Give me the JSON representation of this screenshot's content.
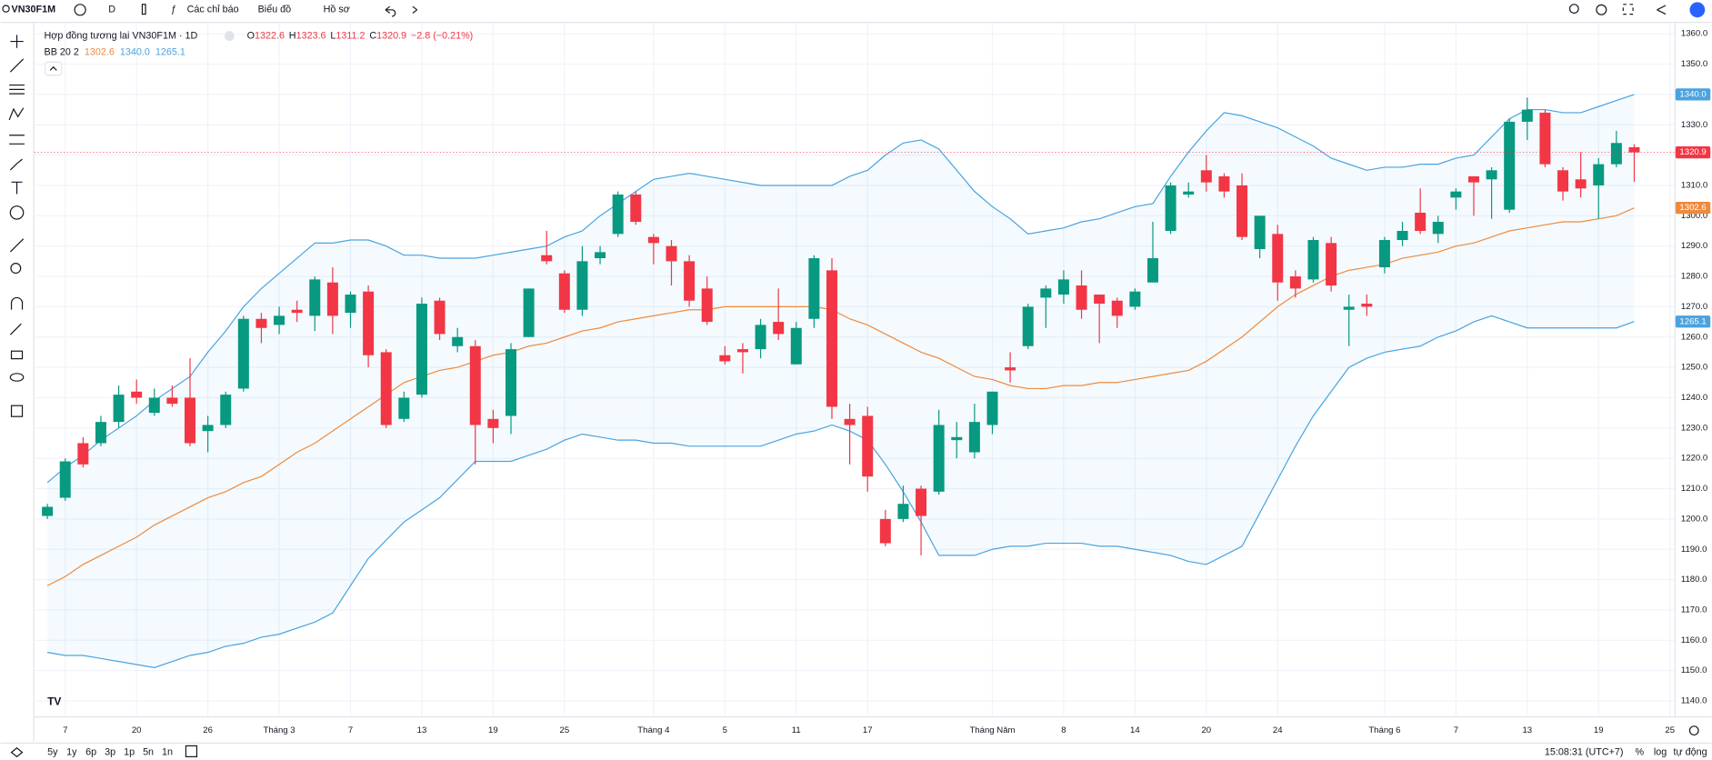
{
  "toolbar": {
    "symbol": "VN30F1M",
    "interval": "D",
    "indicators": "Các chỉ báo",
    "chart": "Biểu đồ",
    "profile": "Hồ sơ"
  },
  "ranges": [
    "5y",
    "1y",
    "6p",
    "3p",
    "1p",
    "5n",
    "1n"
  ],
  "status": {
    "time": "15:08:31 (UTC+7)",
    "percent": "%",
    "log": "log",
    "auto": "tự động"
  },
  "chart_data": {
    "type": "candlestick",
    "title": "Hợp đồng tương lai VN30F1M · 1D",
    "ohlc_legend": [
      {
        "key": "O",
        "value": "1322.6"
      },
      {
        "key": "H",
        "value": "1323.6"
      },
      {
        "key": "L",
        "value": "1311.2"
      },
      {
        "key": "C",
        "value": "1320.9"
      }
    ],
    "change": "−2.8 (−0.21%)",
    "up_color": "#089981",
    "down_color": "#f23645",
    "open": [
      1201,
      1207,
      1225,
      1225,
      1232,
      1242,
      1235,
      1240,
      1240,
      1229,
      1231,
      1243,
      1266,
      1264,
      1269,
      1267,
      1278,
      1268,
      1275,
      1255,
      1233,
      1241,
      1272,
      1257,
      1257,
      1233,
      1234,
      1260,
      1287,
      1281,
      1269,
      1286,
      1294,
      1307,
      1293,
      1290,
      1285,
      1276,
      1254,
      1256,
      1256,
      1265,
      1251,
      1266,
      1282,
      1233,
      1234,
      1200,
      1200,
      1210,
      1209,
      1226,
      1222,
      1231,
      1250,
      1257,
      1273,
      1274,
      1277,
      1274,
      1272,
      1270,
      1278,
      1295,
      1307,
      1315,
      1313,
      1310,
      1289,
      1294,
      1280,
      1279,
      1291,
      1269,
      1271,
      1283,
      1292,
      1301,
      1294,
      1306,
      1313,
      1312,
      1302,
      1331,
      1334,
      1315,
      1312,
      1310,
      1317,
      1322.6
    ],
    "high": [
      1205,
      1220,
      1227,
      1234,
      1244,
      1246,
      1243,
      1244,
      1253,
      1234,
      1242,
      1267,
      1268,
      1270,
      1272,
      1280,
      1283,
      1275,
      1277,
      1256,
      1242,
      1273,
      1273,
      1263,
      1259,
      1236,
      1258,
      1276,
      1295,
      1282,
      1290,
      1290,
      1308,
      1308,
      1294,
      1292,
      1287,
      1280,
      1257,
      1258,
      1266,
      1276,
      1265,
      1287,
      1286,
      1238,
      1237,
      1203,
      1211,
      1211,
      1236,
      1232,
      1238,
      1242,
      1255,
      1271,
      1277,
      1282,
      1282,
      1274,
      1273,
      1276,
      1298,
      1311,
      1311,
      1320,
      1314,
      1314,
      1300,
      1297,
      1282,
      1293,
      1293,
      1274,
      1274,
      1293,
      1298,
      1309,
      1300,
      1309,
      1313,
      1316,
      1332,
      1339,
      1335,
      1316,
      1321,
      1319,
      1328,
      1323.6
    ],
    "low": [
      1200,
      1206,
      1217,
      1224,
      1230,
      1238,
      1234,
      1237,
      1224,
      1222,
      1230,
      1242,
      1258,
      1261,
      1265,
      1262,
      1261,
      1263,
      1250,
      1230,
      1232,
      1240,
      1259,
      1255,
      1218,
      1225,
      1228,
      1260,
      1284,
      1268,
      1267,
      1284,
      1293,
      1297,
      1284,
      1277,
      1270,
      1264,
      1251,
      1248,
      1253,
      1259,
      1251,
      1263,
      1233,
      1218,
      1209,
      1191,
      1199,
      1188,
      1208,
      1220,
      1220,
      1228,
      1245,
      1256,
      1263,
      1271,
      1266,
      1258,
      1263,
      1269,
      1278,
      1294,
      1306,
      1308,
      1306,
      1292,
      1286,
      1272,
      1273,
      1278,
      1275,
      1257,
      1267,
      1281,
      1290,
      1294,
      1291,
      1302,
      1300,
      1299,
      1301,
      1325,
      1316,
      1305,
      1306,
      1299,
      1316,
      1311.2
    ],
    "close": [
      1204,
      1219,
      1218,
      1232,
      1241,
      1240,
      1240,
      1238,
      1225,
      1231,
      1241,
      1266,
      1263,
      1267,
      1268,
      1279,
      1267,
      1274,
      1254,
      1231,
      1240,
      1271,
      1261,
      1260,
      1231,
      1230,
      1256,
      1276,
      1285,
      1269,
      1285,
      1288,
      1307,
      1298,
      1291,
      1285,
      1272,
      1265,
      1252,
      1255,
      1264,
      1261,
      1263,
      1286,
      1237,
      1231,
      1214,
      1192,
      1205,
      1201,
      1231,
      1227,
      1232,
      1242,
      1249,
      1270,
      1276,
      1279,
      1269,
      1271,
      1267,
      1275,
      1286,
      1310,
      1308,
      1311,
      1308,
      1293,
      1300,
      1278,
      1276,
      1292,
      1277,
      1270,
      1270,
      1292,
      1295,
      1295,
      1298,
      1308,
      1311,
      1315,
      1331,
      1335,
      1317,
      1308,
      1309,
      1317,
      1324,
      1320.9
    ],
    "close_last_label": "1320.9",
    "indicator": {
      "name": "BB 20 2",
      "fill": "#2196f3",
      "series": [
        {
          "color": "#f08a3c",
          "last_label": "1302.6",
          "values": [
            1178,
            1181,
            1185,
            1188,
            1191,
            1194,
            1198,
            1201,
            1204,
            1207,
            1209,
            1212,
            1214,
            1218,
            1222,
            1225,
            1229,
            1233,
            1237,
            1241,
            1245,
            1247,
            1249,
            1250,
            1252,
            1254,
            1255,
            1257,
            1258,
            1260,
            1262,
            1263,
            1265,
            1266,
            1267,
            1268,
            1269,
            1269,
            1270,
            1270,
            1270,
            1270,
            1270,
            1270,
            1269,
            1266,
            1264,
            1261,
            1258,
            1255,
            1253,
            1250,
            1247,
            1246,
            1244,
            1243,
            1243,
            1244,
            1244,
            1245,
            1245,
            1246,
            1247,
            1248,
            1249,
            1252,
            1256,
            1260,
            1265,
            1270,
            1274,
            1277,
            1280,
            1282,
            1283,
            1284,
            1286,
            1287,
            1288,
            1290,
            1291,
            1293,
            1295,
            1296,
            1297,
            1298,
            1298,
            1299,
            1300,
            1302.6
          ]
        },
        {
          "color": "#4aa3df",
          "last_label": "1340.0",
          "values": [
            1212,
            1217,
            1221,
            1226,
            1230,
            1234,
            1239,
            1243,
            1247,
            1255,
            1262,
            1270,
            1276,
            1281,
            1286,
            1291,
            1291,
            1292,
            1292,
            1290,
            1287,
            1287,
            1286,
            1286,
            1286,
            1287,
            1288,
            1289,
            1290,
            1293,
            1295,
            1300,
            1304,
            1308,
            1312,
            1313,
            1314,
            1313,
            1312,
            1311,
            1310,
            1310,
            1310,
            1310,
            1310,
            1313,
            1315,
            1320,
            1324,
            1325,
            1322,
            1315,
            1308,
            1303,
            1299,
            1294,
            1295,
            1296,
            1298,
            1299,
            1301,
            1303,
            1304,
            1313,
            1321,
            1328,
            1334,
            1333,
            1331,
            1329,
            1326,
            1323,
            1319,
            1317,
            1315,
            1316,
            1316,
            1317,
            1317,
            1319,
            1320,
            1326,
            1332,
            1335,
            1335,
            1334,
            1334,
            1336,
            1338,
            1340
          ]
        },
        {
          "color": "#4aa3df",
          "last_label": "1265.1",
          "values": [
            1156,
            1155,
            1155,
            1154,
            1153,
            1152,
            1151,
            1153,
            1155,
            1156,
            1158,
            1159,
            1161,
            1162,
            1164,
            1166,
            1169,
            1178,
            1187,
            1193,
            1199,
            1203,
            1207,
            1213,
            1219,
            1219,
            1219,
            1221,
            1223,
            1226,
            1228,
            1227,
            1226,
            1226,
            1225,
            1225,
            1224,
            1224,
            1224,
            1224,
            1224,
            1226,
            1228,
            1229,
            1231,
            1229,
            1226,
            1218,
            1209,
            1199,
            1188,
            1188,
            1188,
            1190,
            1191,
            1191,
            1192,
            1192,
            1192,
            1191,
            1191,
            1190,
            1189,
            1188,
            1186,
            1185,
            1188,
            1191,
            1202,
            1213,
            1224,
            1234,
            1242,
            1250,
            1253,
            1255,
            1256,
            1257,
            1260,
            1262,
            1265,
            1267,
            1265,
            1263,
            1263,
            1263,
            1263,
            1263,
            1263,
            1265.1
          ]
        }
      ]
    },
    "ylim": [
      1134.9,
      1363.6
    ],
    "yticks": [
      {
        "value": 1140,
        "label": "1140.0"
      },
      {
        "value": 1150,
        "label": "1150.0"
      },
      {
        "value": 1160,
        "label": "1160.0"
      },
      {
        "value": 1170,
        "label": "1170.0"
      },
      {
        "value": 1180,
        "label": "1180.0"
      },
      {
        "value": 1190,
        "label": "1190.0"
      },
      {
        "value": 1200,
        "label": "1200.0"
      },
      {
        "value": 1210,
        "label": "1210.0"
      },
      {
        "value": 1220,
        "label": "1220.0"
      },
      {
        "value": 1230,
        "label": "1230.0"
      },
      {
        "value": 1240,
        "label": "1240.0"
      },
      {
        "value": 1250,
        "label": "1250.0"
      },
      {
        "value": 1260,
        "label": "1260.0"
      },
      {
        "value": 1270,
        "label": "1270.0"
      },
      {
        "value": 1280,
        "label": "1280.0"
      },
      {
        "value": 1290,
        "label": "1290.0"
      },
      {
        "value": 1300,
        "label": "1300.0"
      },
      {
        "value": 1310,
        "label": "1310.0"
      },
      {
        "value": 1320,
        "label": "1320.0"
      },
      {
        "value": 1330,
        "label": "1330.0"
      },
      {
        "value": 1340,
        "label": "1340.0"
      },
      {
        "value": 1350,
        "label": "1350.0"
      },
      {
        "value": 1360,
        "label": "1360.0"
      }
    ],
    "xticks": [
      {
        "value": 1,
        "label": "7"
      },
      {
        "value": 5,
        "label": "20"
      },
      {
        "value": 9,
        "label": "26"
      },
      {
        "value": 13,
        "label": "Tháng 3"
      },
      {
        "value": 17,
        "label": "7"
      },
      {
        "value": 21,
        "label": "13"
      },
      {
        "value": 25,
        "label": "19"
      },
      {
        "value": 29,
        "label": "25"
      },
      {
        "value": 34,
        "label": "Tháng 4"
      },
      {
        "value": 38,
        "label": "5"
      },
      {
        "value": 42,
        "label": "11"
      },
      {
        "value": 46,
        "label": "17"
      },
      {
        "value": 53,
        "label": "Tháng Năm"
      },
      {
        "value": 57,
        "label": "8"
      },
      {
        "value": 61,
        "label": "14"
      },
      {
        "value": 65,
        "label": "20"
      },
      {
        "value": 69,
        "label": "24"
      },
      {
        "value": 75,
        "label": "Tháng 6"
      },
      {
        "value": 79,
        "label": "7"
      },
      {
        "value": 83,
        "label": "13"
      },
      {
        "value": 87,
        "label": "19"
      },
      {
        "value": 91,
        "label": "25"
      }
    ],
    "grid": true
  }
}
